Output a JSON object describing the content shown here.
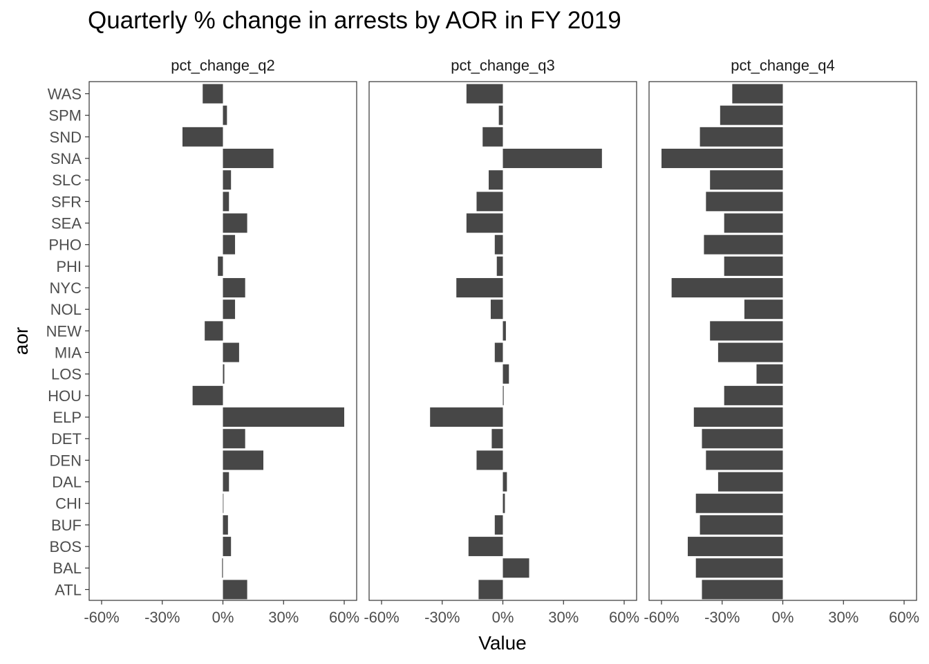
{
  "title": "Quarterly % change in arrests by AOR in FY 2019",
  "chart_data": {
    "type": "bar",
    "orientation": "horizontal",
    "title": "Quarterly % change in arrests by AOR in FY 2019",
    "xlabel": "Value",
    "ylabel": "aor",
    "xlim": [
      -0.6,
      0.6
    ],
    "xticks": [
      -0.6,
      -0.3,
      0,
      0.3,
      0.6
    ],
    "xtick_labels": [
      "-60%",
      "-30%",
      "0%",
      "30%",
      "60%"
    ],
    "categories": [
      "WAS",
      "SPM",
      "SND",
      "SNA",
      "SLC",
      "SFR",
      "SEA",
      "PHO",
      "PHI",
      "NYC",
      "NOL",
      "NEW",
      "MIA",
      "LOS",
      "HOU",
      "ELP",
      "DET",
      "DEN",
      "DAL",
      "CHI",
      "BUF",
      "BOS",
      "BAL",
      "ATL"
    ],
    "bar_color": "#474747",
    "grid": false,
    "facets": [
      {
        "name": "pct_change_q2",
        "values": [
          -0.1,
          0.02,
          -0.2,
          0.25,
          0.04,
          0.03,
          0.12,
          0.06,
          -0.025,
          0.11,
          0.06,
          -0.09,
          0.08,
          0.007,
          -0.15,
          0.6,
          0.11,
          0.2,
          0.03,
          0.0,
          0.025,
          0.04,
          -0.004,
          0.12
        ]
      },
      {
        "name": "pct_change_q3",
        "values": [
          -0.18,
          -0.02,
          -0.1,
          0.49,
          -0.07,
          -0.13,
          -0.18,
          -0.04,
          -0.03,
          -0.23,
          -0.06,
          0.015,
          -0.04,
          0.03,
          0.004,
          -0.36,
          -0.055,
          -0.13,
          0.02,
          0.01,
          -0.04,
          -0.17,
          0.13,
          -0.12
        ]
      },
      {
        "name": "pct_change_q4",
        "values": [
          -0.25,
          -0.31,
          -0.41,
          -0.6,
          -0.36,
          -0.38,
          -0.29,
          -0.39,
          -0.29,
          -0.55,
          -0.19,
          -0.36,
          -0.32,
          -0.13,
          -0.29,
          -0.44,
          -0.4,
          -0.38,
          -0.32,
          -0.43,
          -0.41,
          -0.47,
          -0.43,
          -0.4
        ]
      }
    ]
  }
}
